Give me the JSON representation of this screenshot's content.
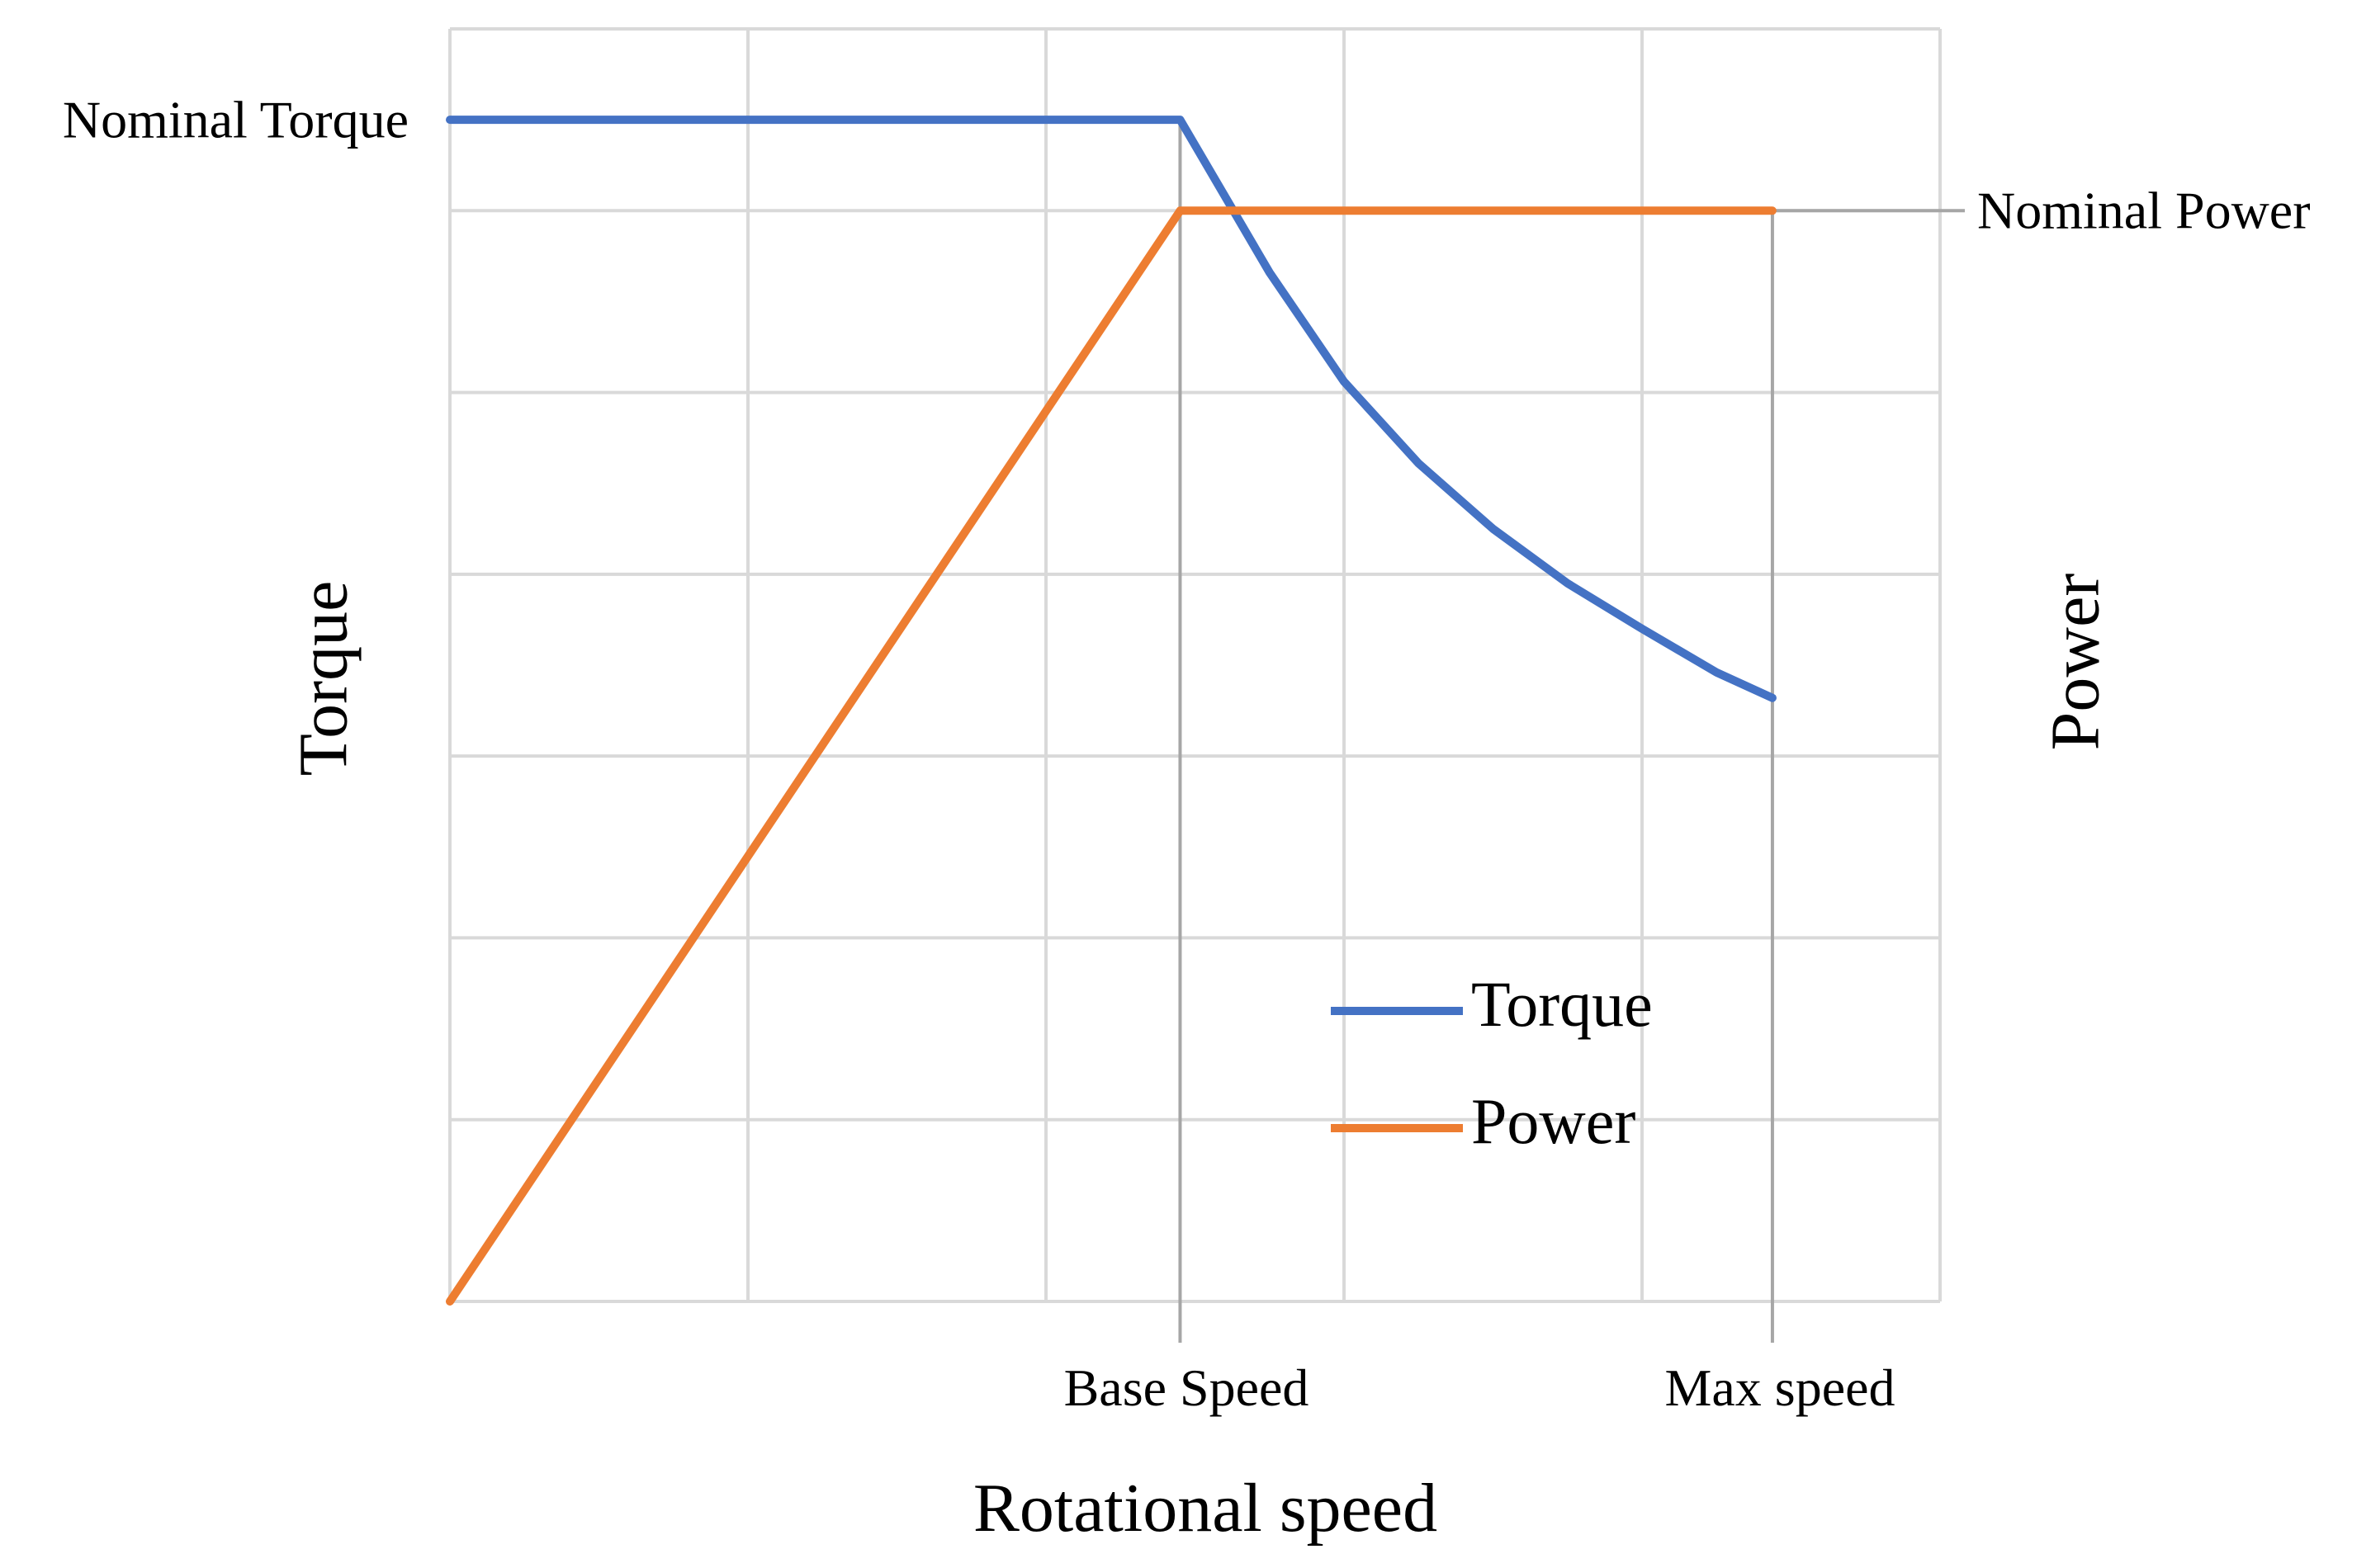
{
  "chart_data": {
    "type": "line",
    "title": "",
    "xlabel": "Rotational speed",
    "ylabel_left": "Torque",
    "ylabel_right": "Power",
    "xlim": [
      0,
      10
    ],
    "ylim": [
      0,
      7
    ],
    "grid": true,
    "x_ticks": [
      {
        "x": 4.9,
        "label": "Base Speed"
      },
      {
        "x": 8.875,
        "label": "Max speed"
      }
    ],
    "y_annotations": [
      {
        "y": 6.5,
        "label": "Nominal Torque",
        "side": "left"
      },
      {
        "y": 6.0,
        "label": "Nominal Power",
        "side": "right"
      }
    ],
    "legend": {
      "position": "center-right"
    },
    "series": [
      {
        "name": "Torque",
        "color": "#4472C4",
        "x": [
          0,
          4.9,
          5.5,
          6.0,
          6.5,
          7.0,
          7.5,
          8.0,
          8.5,
          8.875
        ],
        "y": [
          6.5,
          6.5,
          5.66,
          5.06,
          4.61,
          4.25,
          3.95,
          3.7,
          3.46,
          3.32
        ]
      },
      {
        "name": "Power",
        "color": "#ED7D31",
        "x": [
          0,
          4.9,
          8.875
        ],
        "y": [
          0,
          6.0,
          6.0
        ]
      }
    ]
  }
}
